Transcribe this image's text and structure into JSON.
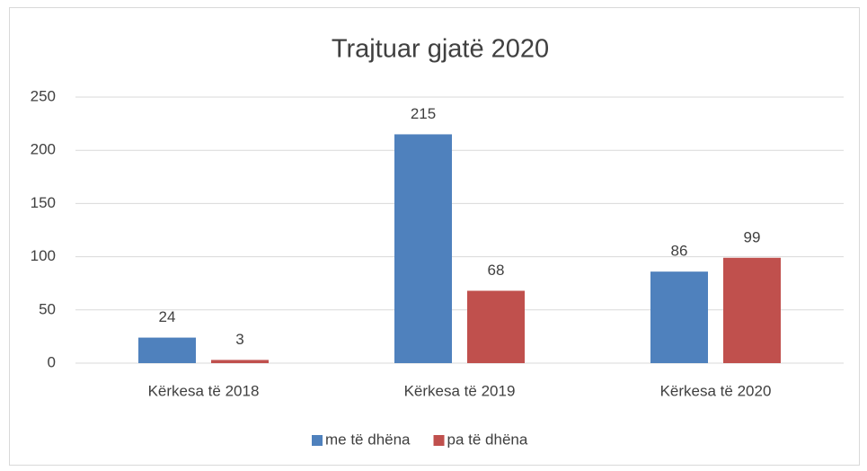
{
  "chart_data": {
    "type": "bar",
    "title": "Trajtuar gjatë 2020",
    "categories": [
      "Kërkesa të 2018",
      "Kërkesa të 2019",
      "Kërkesa të 2020"
    ],
    "series": [
      {
        "name": "me të dhëna",
        "color": "#4f81bd",
        "values": [
          24,
          215,
          86
        ]
      },
      {
        "name": "pa të dhëna",
        "color": "#c0504d",
        "values": [
          3,
          68,
          99
        ]
      }
    ],
    "ylim": [
      0,
      250
    ],
    "yticks": [
      0,
      50,
      100,
      150,
      200,
      250
    ],
    "grid": true,
    "legend": "bottom"
  }
}
